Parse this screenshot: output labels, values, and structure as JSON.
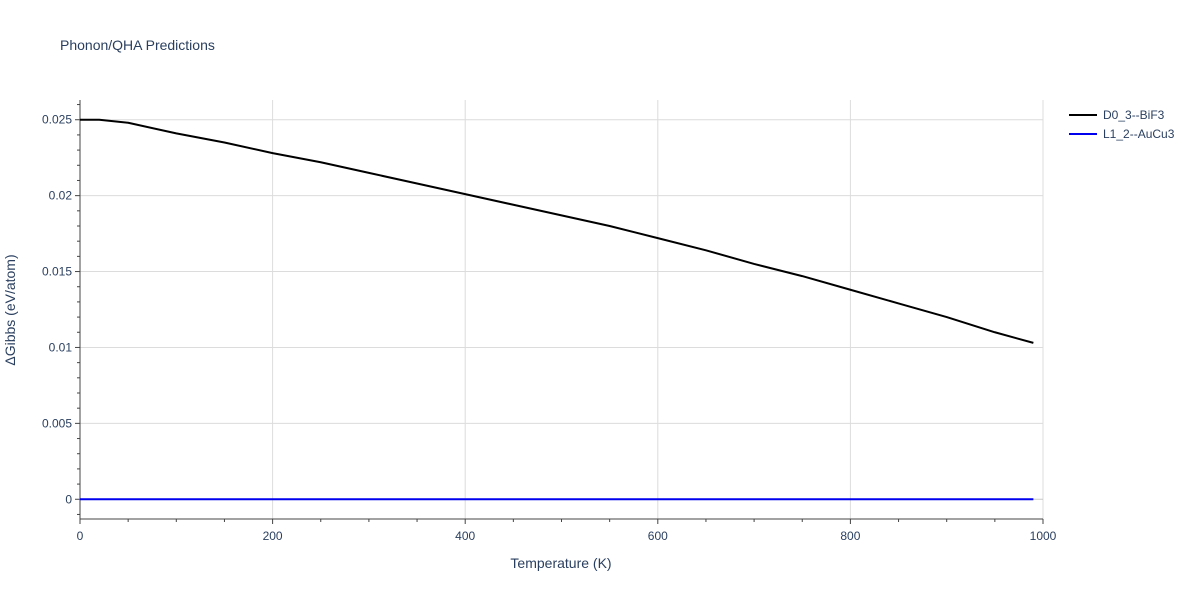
{
  "chart_data": {
    "type": "line",
    "title": "Phonon/QHA Predictions",
    "xlabel": "Temperature (K)",
    "ylabel": "ΔGibbs (eV/atom)",
    "xlim": [
      0,
      1000
    ],
    "ylim": [
      -0.0013,
      0.0263
    ],
    "x_ticks": [
      0,
      200,
      400,
      600,
      800,
      1000
    ],
    "x_tick_labels": [
      "0",
      "200",
      "400",
      "600",
      "800",
      "1000"
    ],
    "y_ticks": [
      0,
      0.005,
      0.01,
      0.015,
      0.02,
      0.025
    ],
    "y_tick_labels": [
      "0",
      "0.005",
      "0.01",
      "0.015",
      "0.02",
      "0.025"
    ],
    "grid": true,
    "legend_position": "top-right",
    "series": [
      {
        "name": "D0_3--BiF3",
        "color": "#000000",
        "x": [
          0,
          20,
          50,
          100,
          150,
          200,
          250,
          300,
          350,
          400,
          450,
          500,
          550,
          600,
          650,
          700,
          750,
          800,
          850,
          900,
          950,
          990
        ],
        "y": [
          0.025,
          0.025,
          0.0248,
          0.0241,
          0.0235,
          0.0228,
          0.0222,
          0.0215,
          0.0208,
          0.0201,
          0.0194,
          0.0187,
          0.018,
          0.0172,
          0.0164,
          0.0155,
          0.0147,
          0.0138,
          0.0129,
          0.012,
          0.011,
          0.0103
        ]
      },
      {
        "name": "L1_2--AuCu3",
        "color": "#0000ee",
        "x": [
          0,
          990
        ],
        "y": [
          0,
          0
        ]
      }
    ]
  }
}
